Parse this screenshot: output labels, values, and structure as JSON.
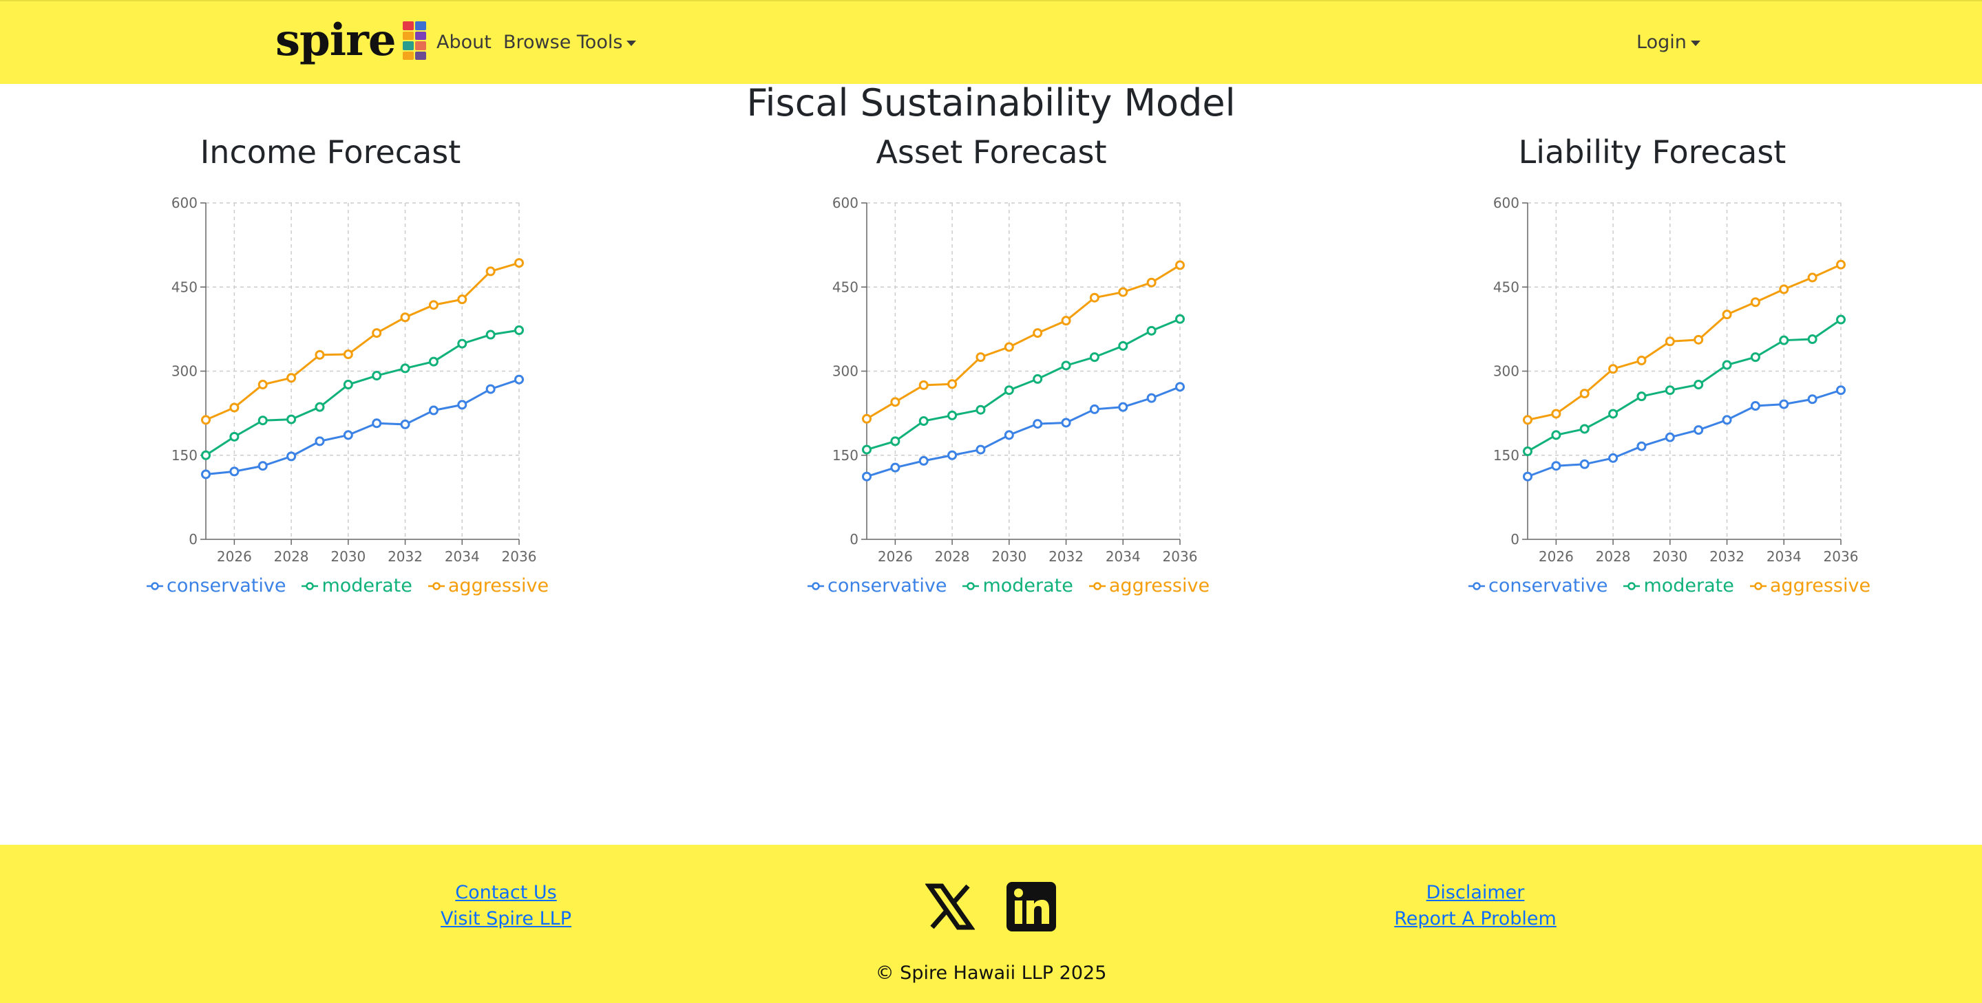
{
  "header": {
    "brand_name": "spire",
    "nav_about": "About",
    "nav_browse": "Browse Tools",
    "nav_login": "Login"
  },
  "main": {
    "page_title": "Fiscal Sustainability Model"
  },
  "colors": {
    "brand_yellow": "#fff24a",
    "conservative": "#3b82e6",
    "moderate": "#10b27a",
    "aggressive": "#f59e0b",
    "link": "#0d6efd"
  },
  "chart_data": [
    {
      "type": "line",
      "title": "Income Forecast",
      "x": [
        2025,
        2026,
        2027,
        2028,
        2029,
        2030,
        2031,
        2032,
        2033,
        2034,
        2035,
        2036
      ],
      "xticks": [
        2026,
        2028,
        2030,
        2032,
        2034,
        2036
      ],
      "ylim": [
        0,
        600
      ],
      "yticks": [
        0,
        150,
        300,
        450,
        600
      ],
      "grid": true,
      "legend_position": "bottom",
      "series": [
        {
          "name": "conservative",
          "color": "#3b82e6",
          "values": [
            116,
            121,
            131,
            148,
            175,
            186,
            207,
            205,
            230,
            240,
            268,
            285
          ]
        },
        {
          "name": "moderate",
          "color": "#10b27a",
          "values": [
            150,
            183,
            212,
            214,
            236,
            276,
            292,
            305,
            317,
            349,
            365,
            373
          ]
        },
        {
          "name": "aggressive",
          "color": "#f59e0b",
          "values": [
            213,
            235,
            276,
            288,
            329,
            330,
            368,
            396,
            418,
            428,
            478,
            493
          ]
        }
      ]
    },
    {
      "type": "line",
      "title": "Asset Forecast",
      "x": [
        2025,
        2026,
        2027,
        2028,
        2029,
        2030,
        2031,
        2032,
        2033,
        2034,
        2035,
        2036
      ],
      "xticks": [
        2026,
        2028,
        2030,
        2032,
        2034,
        2036
      ],
      "ylim": [
        0,
        600
      ],
      "yticks": [
        0,
        150,
        300,
        450,
        600
      ],
      "grid": true,
      "legend_position": "bottom",
      "series": [
        {
          "name": "conservative",
          "color": "#3b82e6",
          "values": [
            112,
            128,
            140,
            150,
            160,
            186,
            206,
            208,
            232,
            236,
            252,
            272
          ]
        },
        {
          "name": "moderate",
          "color": "#10b27a",
          "values": [
            160,
            175,
            211,
            221,
            231,
            266,
            286,
            310,
            325,
            345,
            372,
            393
          ]
        },
        {
          "name": "aggressive",
          "color": "#f59e0b",
          "values": [
            215,
            245,
            275,
            277,
            325,
            343,
            368,
            390,
            431,
            441,
            458,
            489
          ]
        }
      ]
    },
    {
      "type": "line",
      "title": "Liability Forecast",
      "x": [
        2025,
        2026,
        2027,
        2028,
        2029,
        2030,
        2031,
        2032,
        2033,
        2034,
        2035,
        2036
      ],
      "xticks": [
        2026,
        2028,
        2030,
        2032,
        2034,
        2036
      ],
      "ylim": [
        0,
        600
      ],
      "yticks": [
        0,
        150,
        300,
        450,
        600
      ],
      "grid": true,
      "legend_position": "bottom",
      "series": [
        {
          "name": "conservative",
          "color": "#3b82e6",
          "values": [
            112,
            131,
            134,
            145,
            166,
            182,
            195,
            213,
            238,
            241,
            250,
            266
          ]
        },
        {
          "name": "moderate",
          "color": "#10b27a",
          "values": [
            157,
            186,
            197,
            224,
            255,
            266,
            276,
            311,
            325,
            355,
            357,
            392
          ]
        },
        {
          "name": "aggressive",
          "color": "#f59e0b",
          "values": [
            213,
            224,
            260,
            304,
            319,
            353,
            356,
            401,
            423,
            446,
            467,
            490
          ]
        }
      ]
    }
  ],
  "footer": {
    "contact_us": "Contact Us",
    "visit_spire": "Visit Spire LLP",
    "disclaimer": "Disclaimer",
    "report_problem": "Report A Problem",
    "copyright": "© Spire Hawaii LLP 2025",
    "social_icons": [
      "x-icon",
      "linkedin-icon"
    ]
  }
}
